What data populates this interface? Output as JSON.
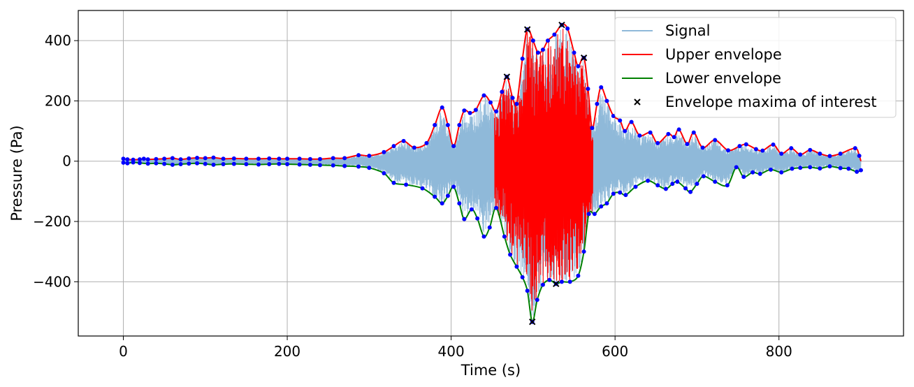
{
  "chart_data": {
    "type": "line",
    "xlabel": "Time (s)",
    "ylabel": "Pressure (Pa)",
    "xlim": [
      -55,
      952
    ],
    "ylim": [
      -580,
      500
    ],
    "xticks": [
      0,
      200,
      400,
      600,
      800
    ],
    "yticks": [
      -400,
      -200,
      0,
      200,
      400
    ],
    "ytick_labels": [
      "−400",
      "−200",
      "0",
      "200",
      "400"
    ],
    "grid": true,
    "legend_position": "top-right",
    "series": [
      {
        "name": "Signal",
        "color": "#8fb9d9",
        "style": "line"
      },
      {
        "name": "Upper envelope",
        "color": "#ff0000",
        "style": "line"
      },
      {
        "name": "Lower envelope",
        "color": "#008000",
        "style": "line"
      },
      {
        "name": "Envelope maxima of interest",
        "color": "#000000",
        "style": "x-marker"
      }
    ],
    "upper_envelope": [
      [
        0,
        8
      ],
      [
        5,
        6
      ],
      [
        12,
        5
      ],
      [
        20,
        6
      ],
      [
        25,
        8
      ],
      [
        30,
        6
      ],
      [
        40,
        7
      ],
      [
        50,
        8
      ],
      [
        60,
        10
      ],
      [
        70,
        6
      ],
      [
        80,
        9
      ],
      [
        90,
        11
      ],
      [
        100,
        10
      ],
      [
        110,
        12
      ],
      [
        122,
        8
      ],
      [
        135,
        9
      ],
      [
        150,
        8
      ],
      [
        165,
        8
      ],
      [
        178,
        9
      ],
      [
        190,
        8
      ],
      [
        200,
        8
      ],
      [
        215,
        8
      ],
      [
        228,
        7
      ],
      [
        240,
        7
      ],
      [
        256,
        10
      ],
      [
        270,
        10
      ],
      [
        287,
        20
      ],
      [
        300,
        18
      ],
      [
        318,
        30
      ],
      [
        330,
        50
      ],
      [
        342,
        67
      ],
      [
        355,
        45
      ],
      [
        370,
        60
      ],
      [
        380,
        120
      ],
      [
        389,
        178
      ],
      [
        396,
        120
      ],
      [
        403,
        50
      ],
      [
        410,
        120
      ],
      [
        416,
        168
      ],
      [
        423,
        160
      ],
      [
        430,
        170
      ],
      [
        440,
        218
      ],
      [
        448,
        195
      ],
      [
        455,
        165
      ],
      [
        462,
        230
      ],
      [
        468,
        280
      ],
      [
        475,
        210
      ],
      [
        480,
        190
      ],
      [
        487,
        340
      ],
      [
        493,
        437
      ],
      [
        500,
        400
      ],
      [
        506,
        360
      ],
      [
        512,
        370
      ],
      [
        518,
        400
      ],
      [
        526,
        420
      ],
      [
        535,
        452
      ],
      [
        542,
        440
      ],
      [
        550,
        360
      ],
      [
        555,
        315
      ],
      [
        562,
        343
      ],
      [
        567,
        240
      ],
      [
        572,
        110
      ],
      [
        578,
        190
      ],
      [
        583,
        245
      ],
      [
        590,
        200
      ],
      [
        598,
        150
      ],
      [
        606,
        135
      ],
      [
        612,
        100
      ],
      [
        620,
        130
      ],
      [
        630,
        85
      ],
      [
        643,
        95
      ],
      [
        652,
        60
      ],
      [
        665,
        90
      ],
      [
        672,
        80
      ],
      [
        678,
        105
      ],
      [
        688,
        57
      ],
      [
        696,
        95
      ],
      [
        707,
        45
      ],
      [
        722,
        70
      ],
      [
        738,
        36
      ],
      [
        752,
        50
      ],
      [
        760,
        56
      ],
      [
        772,
        40
      ],
      [
        780,
        35
      ],
      [
        793,
        55
      ],
      [
        803,
        25
      ],
      [
        815,
        43
      ],
      [
        826,
        22
      ],
      [
        838,
        37
      ],
      [
        850,
        25
      ],
      [
        862,
        17
      ],
      [
        875,
        25
      ],
      [
        893,
        43
      ],
      [
        898,
        18
      ],
      [
        900,
        0
      ]
    ],
    "lower_envelope": [
      [
        0,
        -5
      ],
      [
        5,
        -7
      ],
      [
        12,
        -4
      ],
      [
        20,
        -6
      ],
      [
        30,
        -8
      ],
      [
        40,
        -7
      ],
      [
        50,
        -9
      ],
      [
        60,
        -12
      ],
      [
        70,
        -10
      ],
      [
        80,
        -8
      ],
      [
        90,
        -7
      ],
      [
        100,
        -9
      ],
      [
        110,
        -12
      ],
      [
        122,
        -10
      ],
      [
        135,
        -9
      ],
      [
        150,
        -10
      ],
      [
        165,
        -11
      ],
      [
        178,
        -10
      ],
      [
        190,
        -9
      ],
      [
        200,
        -10
      ],
      [
        215,
        -11
      ],
      [
        228,
        -12
      ],
      [
        240,
        -13
      ],
      [
        256,
        -14
      ],
      [
        270,
        -16
      ],
      [
        287,
        -18
      ],
      [
        300,
        -22
      ],
      [
        318,
        -40
      ],
      [
        330,
        -72
      ],
      [
        345,
        -78
      ],
      [
        365,
        -90
      ],
      [
        380,
        -118
      ],
      [
        389,
        -140
      ],
      [
        396,
        -115
      ],
      [
        403,
        -85
      ],
      [
        410,
        -140
      ],
      [
        416,
        -192
      ],
      [
        425,
        -160
      ],
      [
        432,
        -190
      ],
      [
        440,
        -250
      ],
      [
        447,
        -220
      ],
      [
        455,
        -155
      ],
      [
        465,
        -250
      ],
      [
        472,
        -310
      ],
      [
        480,
        -350
      ],
      [
        487,
        -385
      ],
      [
        493,
        -430
      ],
      [
        499,
        -533
      ],
      [
        505,
        -460
      ],
      [
        512,
        -410
      ],
      [
        520,
        -394
      ],
      [
        528,
        -407
      ],
      [
        535,
        -400
      ],
      [
        545,
        -400
      ],
      [
        555,
        -380
      ],
      [
        562,
        -300
      ],
      [
        568,
        -175
      ],
      [
        575,
        -175
      ],
      [
        583,
        -150
      ],
      [
        590,
        -140
      ],
      [
        598,
        -108
      ],
      [
        606,
        -104
      ],
      [
        613,
        -112
      ],
      [
        625,
        -85
      ],
      [
        640,
        -65
      ],
      [
        652,
        -80
      ],
      [
        662,
        -92
      ],
      [
        670,
        -75
      ],
      [
        676,
        -68
      ],
      [
        686,
        -90
      ],
      [
        692,
        -102
      ],
      [
        700,
        -75
      ],
      [
        708,
        -50
      ],
      [
        722,
        -68
      ],
      [
        737,
        -80
      ],
      [
        748,
        -20
      ],
      [
        757,
        -52
      ],
      [
        768,
        -37
      ],
      [
        777,
        -42
      ],
      [
        790,
        -28
      ],
      [
        803,
        -37
      ],
      [
        816,
        -25
      ],
      [
        826,
        -22
      ],
      [
        838,
        -20
      ],
      [
        850,
        -24
      ],
      [
        862,
        -17
      ],
      [
        875,
        -23
      ],
      [
        885,
        -25
      ],
      [
        895,
        -35
      ],
      [
        900,
        -30
      ]
    ],
    "envelope_maxima_of_interest": [
      {
        "x": 468,
        "y": 280
      },
      {
        "x": 493,
        "y": 437
      },
      {
        "x": 535,
        "y": 452
      },
      {
        "x": 562,
        "y": 343
      },
      {
        "x": 499,
        "y": -533
      },
      {
        "x": 528,
        "y": -407
      }
    ],
    "signal_extent": [
      0,
      900
    ],
    "highlighted_segment": {
      "x_start": 453,
      "x_end": 573
    }
  }
}
